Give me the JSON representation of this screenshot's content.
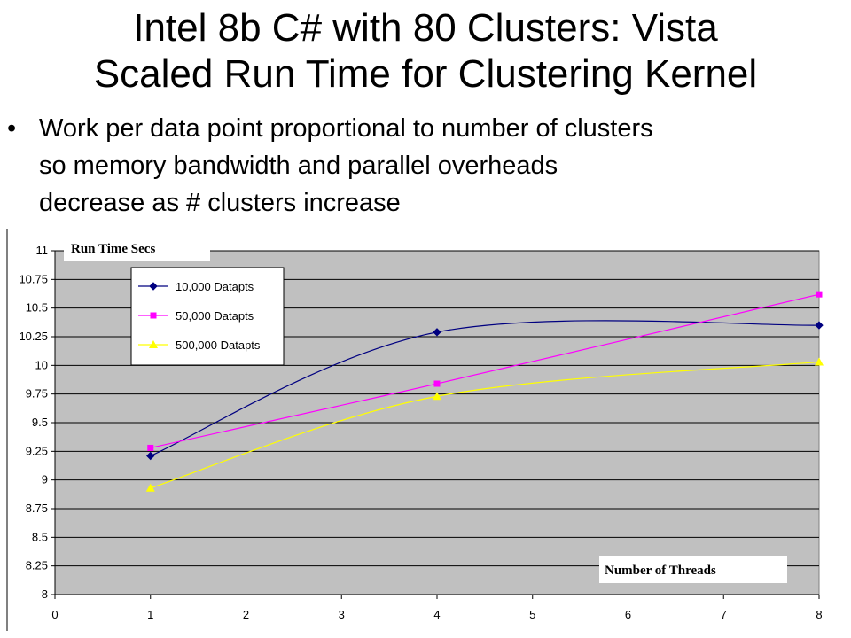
{
  "slide": {
    "title_lines": [
      "Intel 8b C# with 80 Clusters: Vista",
      "Scaled Run Time for Clustering Kernel"
    ],
    "bullet_marker": "•",
    "bullet_lines": [
      "Work per data point proportional to number of clusters",
      "so memory bandwidth and parallel overheads",
      "decrease as # clusters increase"
    ]
  },
  "chart_data": {
    "type": "line",
    "title": "",
    "xlabel": "Number of Threads",
    "ylabel": "Run Time Secs",
    "xlim": [
      0,
      8
    ],
    "ylim": [
      8,
      11
    ],
    "x_ticks": [
      "0",
      "1",
      "2",
      "3",
      "4",
      "5",
      "6",
      "7",
      "8"
    ],
    "y_ticks": [
      "8",
      "8.25",
      "8.5",
      "8.75",
      "9",
      "9.25",
      "9.5",
      "9.75",
      "10",
      "10.25",
      "10.5",
      "10.75",
      "11"
    ],
    "grid": true,
    "legend_position": "top-left",
    "plot_background": "#c0c0c0",
    "series": [
      {
        "name": "10,000 Datapts",
        "color": "#000080",
        "marker": "diamond",
        "x": [
          1,
          4,
          8
        ],
        "y": [
          9.21,
          10.29,
          10.35
        ]
      },
      {
        "name": "50,000 Datapts",
        "color": "#ff00ff",
        "marker": "square",
        "x": [
          1,
          4,
          8
        ],
        "y": [
          9.28,
          9.84,
          10.62
        ]
      },
      {
        "name": "500,000 Datapts",
        "color": "#ffff00",
        "marker": "triangle",
        "x": [
          1,
          4,
          8
        ],
        "y": [
          8.93,
          9.73,
          10.03
        ]
      }
    ]
  }
}
